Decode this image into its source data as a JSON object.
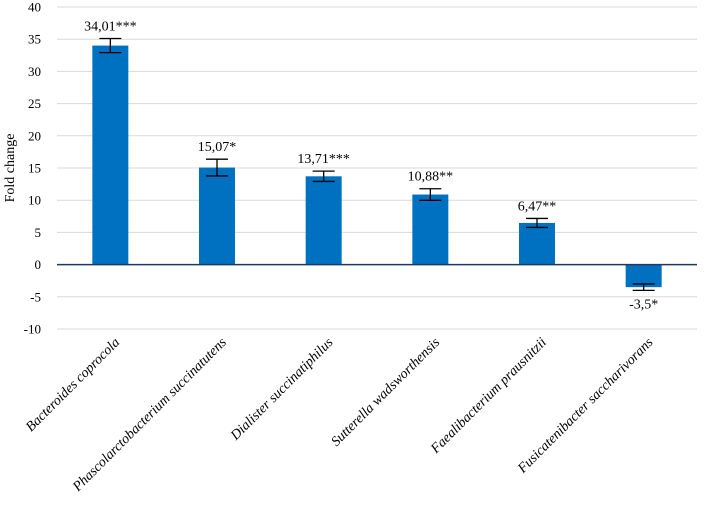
{
  "chart_data": {
    "type": "bar",
    "title": "",
    "xlabel": "",
    "ylabel": "Fold change",
    "ylim": [
      -10,
      40
    ],
    "yticks": [
      -10,
      -5,
      0,
      5,
      10,
      15,
      20,
      25,
      30,
      35,
      40
    ],
    "grid": true,
    "colors": {
      "bar": "#0070c0",
      "zero_line": "#1f3864",
      "grid": "#d9d9d9"
    },
    "categories": [
      "Bacteroides coprocola",
      "Phascolarctobacterium succinatutens",
      "Dialister succinatiphilus",
      "Sutterella wadsworthensis",
      "Faealibacterium prausnitzii",
      "Fusicatenibacter saccharivorans"
    ],
    "values": [
      34.01,
      15.07,
      13.71,
      10.88,
      6.47,
      -3.5
    ],
    "errors": [
      1.1,
      1.3,
      0.8,
      0.9,
      0.7,
      0.5
    ],
    "data_labels": [
      "34,01***",
      "15,07*",
      "13,71***",
      "10,88**",
      "6,47**",
      "-3,5*"
    ]
  }
}
